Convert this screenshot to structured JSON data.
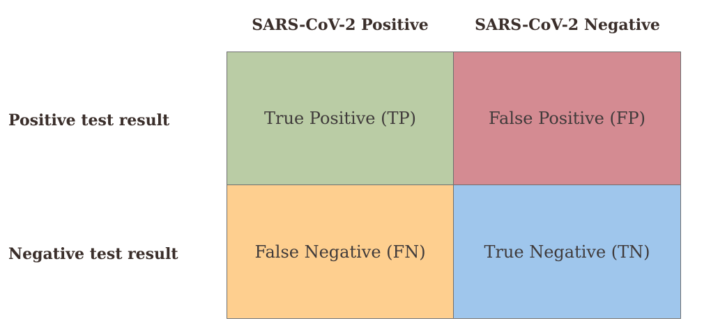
{
  "columns": {
    "positive": "SARS-CoV-2 Positive",
    "negative": "SARS-CoV-2 Negative"
  },
  "rows": {
    "positive": "Positive test result",
    "negative": "Negative test result"
  },
  "cells": {
    "tp": {
      "label": "True Positive (TP)",
      "color": "#bacca5"
    },
    "fp": {
      "label": "False Positive (FP)",
      "color": "#d48b92"
    },
    "fn": {
      "label": "False Negative (FN)",
      "color": "#fecf8f"
    },
    "tn": {
      "label": "True Negative (TN)",
      "color": "#9fc6ec"
    }
  }
}
